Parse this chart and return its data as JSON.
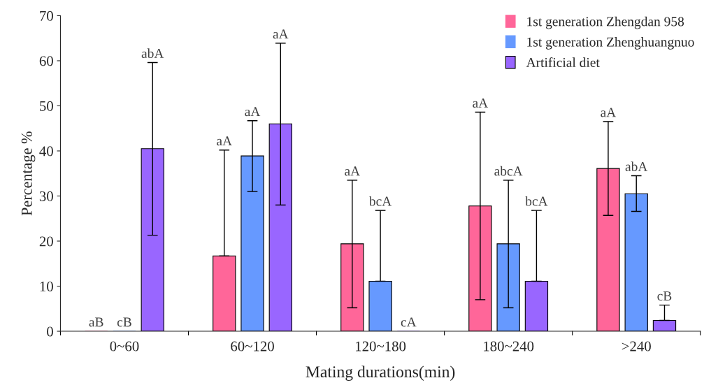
{
  "chart_data": {
    "type": "bar",
    "xlabel": "Mating durations(min)",
    "ylabel": "Percentage %",
    "categories": [
      "0~60",
      "60~120",
      "120~180",
      "180~240",
      ">240"
    ],
    "series": [
      {
        "name": "1st generation Zhengdan 958",
        "color": "#ff6699",
        "values": [
          0,
          16.7,
          19.4,
          27.8,
          36.1
        ],
        "errors": [
          null,
          [
            16.7,
            40.2
          ],
          [
            5.2,
            33.5
          ],
          [
            7.0,
            48.6
          ],
          [
            25.7,
            46.5
          ]
        ]
      },
      {
        "name": "1st generation Zhenghuangnuo",
        "color": "#6699ff",
        "values": [
          0,
          38.9,
          11.1,
          19.4,
          30.5
        ],
        "errors": [
          null,
          [
            31.0,
            46.7
          ],
          [
            11.1,
            26.8
          ],
          [
            5.2,
            33.5
          ],
          [
            26.6,
            34.5
          ]
        ]
      },
      {
        "name": "Artificial diet",
        "color": "#9966ff",
        "values": [
          40.5,
          46.0,
          0,
          11.1,
          2.4
        ],
        "errors": [
          [
            21.3,
            59.6
          ],
          [
            28.0,
            63.9
          ],
          null,
          [
            11.1,
            26.8
          ],
          [
            2.4,
            5.8
          ]
        ]
      }
    ],
    "annotations": [
      "aB",
      "aA",
      "aA",
      "aA",
      "aA",
      "cB",
      "aA",
      "bcA",
      "abcA",
      "abA",
      "abA",
      "aA",
      "cA",
      "bcA",
      "cB"
    ],
    "ylim": [
      0,
      70
    ],
    "yticks": [
      0,
      10,
      20,
      30,
      40,
      50,
      60,
      70
    ],
    "grid": false,
    "legend": "top right"
  }
}
